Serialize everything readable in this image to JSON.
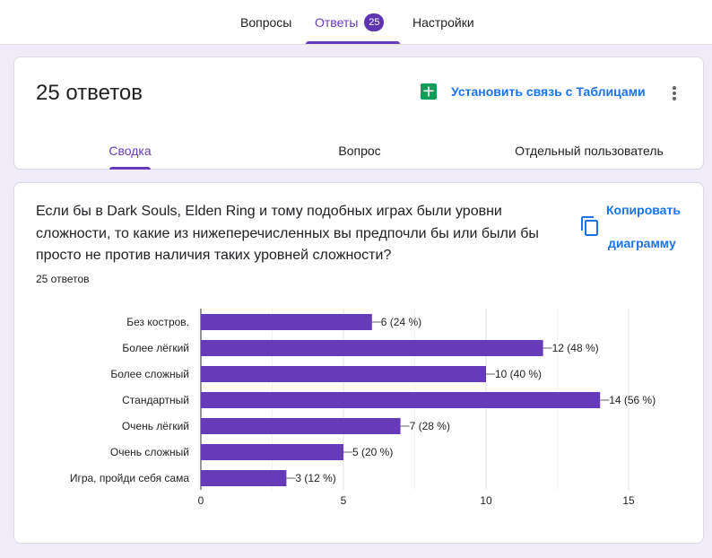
{
  "top_tabs": {
    "questions": "Вопросы",
    "answers": "Ответы",
    "answers_count": "25",
    "settings": "Настройки"
  },
  "summary_card": {
    "title": "25 ответов",
    "sheets_link": "Установить связь с Таблицами",
    "sub_tabs": [
      "Сводка",
      "Вопрос",
      "Отдельный пользователь"
    ]
  },
  "question_card": {
    "question": "Если бы в Dark Souls, Elden Ring и тому подобных играх были уровни сложности, то какие из нижеперечисленных вы предпочли бы или были бы просто не против наличия таких уровней сложности?",
    "responses": "25 ответов",
    "copy_line1": "Копировать",
    "copy_line2": "диаграмму"
  },
  "colors": {
    "accent": "#673ab7",
    "bar": "#673ab7",
    "link": "#1a73e8",
    "background": "#f0ebf8"
  },
  "chart_data": {
    "type": "bar",
    "orientation": "horizontal",
    "categories": [
      "Без костров.",
      "Более лёгкий",
      "Более сложный",
      "Стандартный",
      "Очень лёгкий",
      "Очень сложный",
      "Игра, пройди себя сама"
    ],
    "values": [
      6,
      12,
      10,
      14,
      7,
      5,
      3
    ],
    "data_labels": [
      "6 (24 %)",
      "12 (48 %)",
      "10 (40 %)",
      "14 (56 %)",
      "7 (28 %)",
      "5 (20 %)",
      "3 (12 %)"
    ],
    "x_ticks": [
      "0",
      "5",
      "10",
      "15"
    ],
    "xlim": [
      0,
      15
    ],
    "grid": true
  }
}
